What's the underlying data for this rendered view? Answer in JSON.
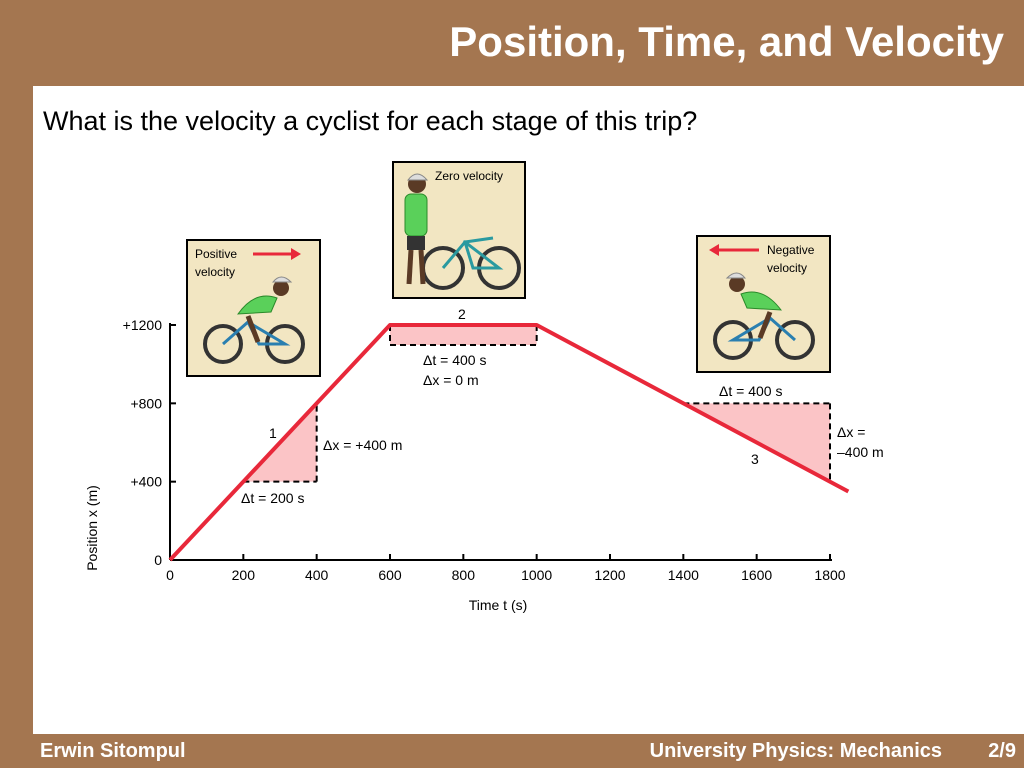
{
  "slide": {
    "title": "Position, Time, and Velocity",
    "question": "What is the velocity a cyclist  for each stage of this trip?",
    "footer_left": "Erwin Sitompul",
    "footer_right": "University Physics: Mechanics",
    "page": "2/9"
  },
  "colors": {
    "background": "#A47650",
    "line": "#E8283A",
    "fill": "#FBC4C6",
    "panel": "#F2E6C2"
  },
  "chart_data": {
    "type": "line",
    "xlabel": "Time t (s)",
    "ylabel": "Position x (m)",
    "xlim": [
      0,
      1800
    ],
    "ylim": [
      0,
      1200
    ],
    "x_ticks": [
      0,
      200,
      400,
      600,
      800,
      1000,
      1200,
      1400,
      1600,
      1800
    ],
    "x_tick_labels": [
      "0",
      "200",
      "400",
      "600",
      "800",
      "1000",
      "1200",
      "1400",
      "1600",
      "1800"
    ],
    "y_ticks": [
      0,
      400,
      800,
      1200
    ],
    "y_tick_labels": [
      "0",
      "+400",
      "+800",
      "+1200"
    ],
    "series": [
      {
        "x": [
          0,
          600,
          1000,
          1850
        ],
        "y": [
          0,
          1200,
          1200,
          350
        ]
      }
    ],
    "annotations": [
      {
        "stage": "1",
        "dt": "Δt = 200 s",
        "dx": "Δx = +400 m"
      },
      {
        "stage": "2",
        "dt": "Δt = 400 s",
        "dx": "Δx = 0 m"
      },
      {
        "stage": "3",
        "dt": "Δt = 400 s",
        "dx_line1": "Δx =",
        "dx_line2": "–400 m"
      }
    ],
    "panels": [
      {
        "label_line1": "Positive",
        "label_line2": "velocity"
      },
      {
        "label_line1": "Zero velocity"
      },
      {
        "label_line1": "Negative",
        "label_line2": "velocity"
      }
    ]
  }
}
